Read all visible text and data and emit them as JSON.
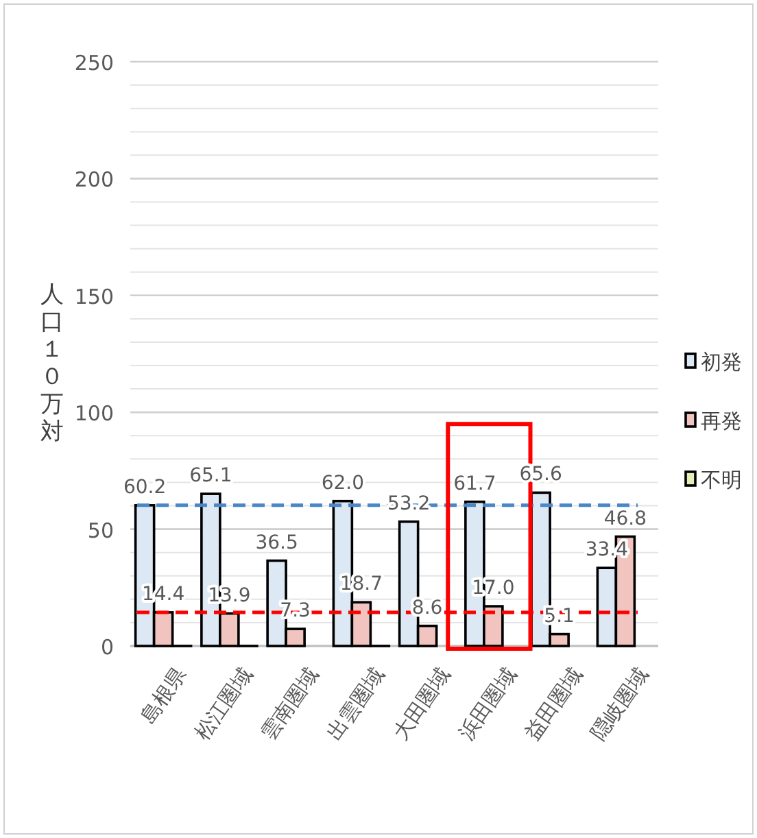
{
  "chart_data": {
    "type": "bar",
    "ylabel": "人口１０万対",
    "categories": [
      "島根県",
      "松江圏域",
      "雲南圏域",
      "出雲圏域",
      "大田圏域",
      "浜田圏域",
      "益田圏域",
      "隠岐圏域"
    ],
    "series": [
      {
        "name": "初発",
        "color": "#dce9f5",
        "values": [
          60.2,
          65.1,
          36.5,
          62.0,
          53.2,
          61.7,
          65.6,
          33.4
        ],
        "value_labels": [
          "60.2",
          "65.1",
          "36.5",
          "62.0",
          "53.2",
          "61.7",
          "65.6",
          "33.4"
        ]
      },
      {
        "name": "再発",
        "color": "#f2c4c0",
        "values": [
          14.4,
          13.9,
          7.3,
          18.7,
          8.6,
          17.0,
          5.1,
          46.8
        ],
        "value_labels": [
          "14.4",
          "13.9",
          "7.3",
          "18.7",
          "8.6",
          "17.0",
          "5.1",
          "46.8"
        ]
      },
      {
        "name": "不明",
        "color": "#e3efb8",
        "values": [
          0,
          0,
          null,
          0,
          null,
          null,
          null,
          null
        ]
      }
    ],
    "ylim": [
      0,
      250
    ],
    "yticks": [
      0,
      50,
      100,
      150,
      200,
      250
    ],
    "grid": "y",
    "legend": "right",
    "ref_lines": [
      {
        "axis": "y",
        "value": 60.2,
        "color": "#4a86c8",
        "line_style": "dashed"
      },
      {
        "axis": "y",
        "value": 14.4,
        "color": "#ff0000",
        "line_style": "dashed"
      }
    ]
  }
}
